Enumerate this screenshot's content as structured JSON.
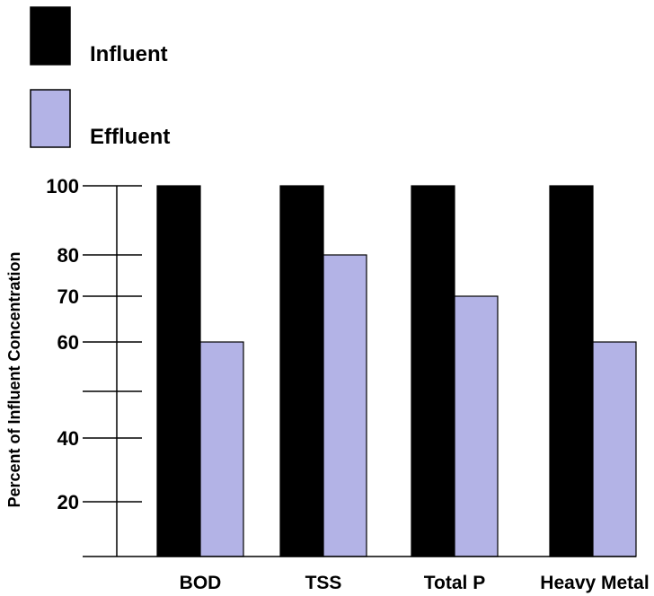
{
  "chart_data": {
    "type": "bar",
    "title": "",
    "xlabel": "",
    "ylabel": "Percent of Influent Concentration",
    "categories": [
      "BOD",
      "TSS",
      "Total P",
      "Heavy Metal"
    ],
    "series": [
      {
        "name": "Influent",
        "color": "#000000",
        "values": [
          100,
          100,
          100,
          100
        ]
      },
      {
        "name": "Effluent",
        "color": "#b3b3e6",
        "values": [
          60,
          80,
          70,
          60
        ]
      }
    ],
    "y_ticks": [
      {
        "value": 100,
        "label": "100"
      },
      {
        "value": 80,
        "label": "80"
      },
      {
        "value": 70,
        "label": "70"
      },
      {
        "value": 60,
        "label": "60"
      },
      {
        "value": 50,
        "label": ""
      },
      {
        "value": 40,
        "label": "40"
      },
      {
        "value": 20,
        "label": "20"
      }
    ],
    "legend_position": "top-left"
  }
}
